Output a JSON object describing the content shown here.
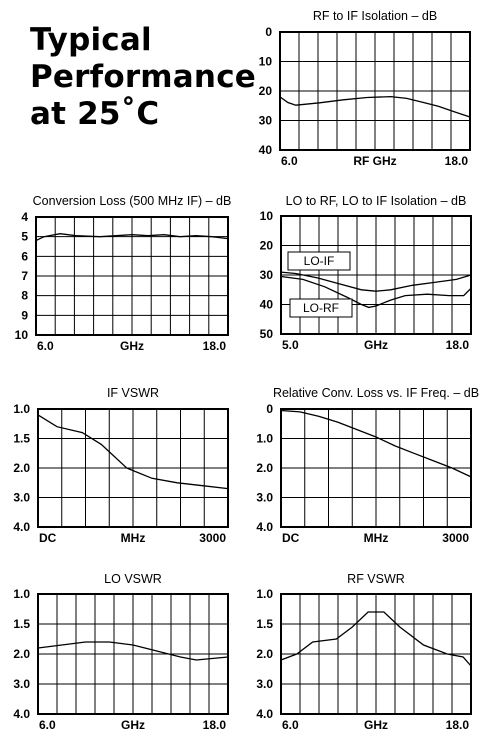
{
  "heading": {
    "line1": "Typical",
    "line2": "Performance",
    "line3": "at 25˚C"
  },
  "chart_data": [
    {
      "id": "rf-if",
      "type": "line",
      "title": "RF to IF Isolation – dB",
      "xlabel": "RF GHz",
      "x_ticks": [
        "6.0",
        "",
        "18.0"
      ],
      "y_ticks": [
        "0",
        "10",
        "20",
        "30",
        "40"
      ],
      "xlim": [
        6.0,
        18.0
      ],
      "ylim": [
        0,
        40
      ],
      "y_inverted": true,
      "grid": true,
      "series": [
        {
          "values": [
            [
              6.0,
              22.0
            ],
            [
              6.5,
              23.9
            ],
            [
              7.0,
              24.8
            ],
            [
              8.5,
              24.0
            ],
            [
              10.0,
              23.0
            ],
            [
              11.5,
              22.2
            ],
            [
              13.0,
              21.9
            ],
            [
              14.0,
              22.5
            ],
            [
              15.0,
              23.8
            ],
            [
              16.0,
              25.2
            ],
            [
              17.0,
              27.0
            ],
            [
              18.0,
              28.8
            ]
          ]
        }
      ]
    },
    {
      "id": "conv-loss",
      "type": "line",
      "title": "Conversion Loss (500 MHz IF) – dB",
      "xlabel": "GHz",
      "x_ticks": [
        "6.0",
        "",
        "18.0"
      ],
      "y_ticks": [
        "4",
        "5",
        "6",
        "7",
        "8",
        "9",
        "10"
      ],
      "xlim": [
        6.0,
        18.0
      ],
      "ylim": [
        4,
        10
      ],
      "y_inverted": true,
      "grid": true,
      "series": [
        {
          "values": [
            [
              6.0,
              5.2
            ],
            [
              6.5,
              5.0
            ],
            [
              7.5,
              4.85
            ],
            [
              8.5,
              4.95
            ],
            [
              10.0,
              5.0
            ],
            [
              11.0,
              4.95
            ],
            [
              12.0,
              4.9
            ],
            [
              13.0,
              4.95
            ],
            [
              14.0,
              4.9
            ],
            [
              15.0,
              5.0
            ],
            [
              16.0,
              4.95
            ],
            [
              17.0,
              5.0
            ],
            [
              18.0,
              5.1
            ]
          ]
        }
      ]
    },
    {
      "id": "lo-iso",
      "type": "line",
      "title": "LO to RF, LO to IF Isolation – dB",
      "xlabel": "GHz",
      "x_ticks": [
        "5.0",
        "",
        "18.0"
      ],
      "y_ticks": [
        "10",
        "20",
        "30",
        "40",
        "50"
      ],
      "xlim": [
        5.0,
        18.0
      ],
      "ylim": [
        10,
        50
      ],
      "y_inverted": true,
      "grid": true,
      "legend": [
        "LO-IF",
        "LO-RF"
      ],
      "series": [
        {
          "name": "LO-IF",
          "values": [
            [
              5.0,
              29.0
            ],
            [
              6.0,
              29.5
            ],
            [
              7.5,
              31.0
            ],
            [
              9.0,
              33.0
            ],
            [
              10.5,
              35.0
            ],
            [
              11.5,
              35.5
            ],
            [
              12.5,
              35.0
            ],
            [
              14.0,
              33.5
            ],
            [
              15.5,
              32.5
            ],
            [
              17.0,
              31.5
            ],
            [
              18.0,
              30.0
            ]
          ]
        },
        {
          "name": "LO-RF",
          "values": [
            [
              5.0,
              30.5
            ],
            [
              6.5,
              31.5
            ],
            [
              8.0,
              34.0
            ],
            [
              9.5,
              37.5
            ],
            [
              10.5,
              40.0
            ],
            [
              11.0,
              41.0
            ],
            [
              11.5,
              40.5
            ],
            [
              12.5,
              38.5
            ],
            [
              13.5,
              37.0
            ],
            [
              15.0,
              36.5
            ],
            [
              16.5,
              37.0
            ],
            [
              17.5,
              37.0
            ],
            [
              18.0,
              34.5
            ]
          ]
        }
      ]
    },
    {
      "id": "if-vswr",
      "type": "line",
      "title": "IF VSWR",
      "xlabel": "MHz",
      "x_ticks": [
        "DC",
        "",
        "3000"
      ],
      "y_ticks": [
        "1.0",
        "1.5",
        "2.0",
        "3.0",
        "4.0"
      ],
      "xlim": [
        0,
        3000
      ],
      "ylim": [
        0,
        4
      ],
      "grid": true,
      "series": [
        {
          "values": [
            [
              0,
              1.1
            ],
            [
              300,
              1.3
            ],
            [
              700,
              1.4
            ],
            [
              1000,
              1.6
            ],
            [
              1400,
              2.0
            ],
            [
              1800,
              2.35
            ],
            [
              2200,
              2.5
            ],
            [
              2600,
              2.6
            ],
            [
              3000,
              2.7
            ]
          ]
        }
      ]
    },
    {
      "id": "rel-conv",
      "type": "line",
      "title": "Relative Conv. Loss vs. IF Freq. – dB",
      "xlabel": "MHz",
      "x_ticks": [
        "DC",
        "",
        "3000"
      ],
      "y_ticks": [
        "0",
        "1.0",
        "2.0",
        "3.0",
        "4.0"
      ],
      "xlim": [
        0,
        3000
      ],
      "ylim": [
        0,
        4
      ],
      "y_inverted": true,
      "grid": true,
      "series": [
        {
          "values": [
            [
              0,
              0.05
            ],
            [
              300,
              0.1
            ],
            [
              600,
              0.25
            ],
            [
              900,
              0.45
            ],
            [
              1200,
              0.7
            ],
            [
              1500,
              0.95
            ],
            [
              1800,
              1.25
            ],
            [
              2100,
              1.5
            ],
            [
              2400,
              1.75
            ],
            [
              2700,
              2.0
            ],
            [
              3000,
              2.3
            ]
          ]
        }
      ]
    },
    {
      "id": "lo-vswr",
      "type": "line",
      "title": "LO VSWR",
      "xlabel": "GHz",
      "x_ticks": [
        "6.0",
        "",
        "18.0"
      ],
      "y_ticks": [
        "1.0",
        "1.5",
        "2.0",
        "3.0",
        "4.0"
      ],
      "xlim": [
        6.0,
        18.0
      ],
      "ylim": [
        0,
        4
      ],
      "grid": true,
      "series": [
        {
          "values": [
            [
              6.0,
              1.9
            ],
            [
              7.5,
              1.85
            ],
            [
              9.0,
              1.8
            ],
            [
              10.5,
              1.8
            ],
            [
              12.0,
              1.85
            ],
            [
              13.5,
              1.95
            ],
            [
              15.0,
              2.1
            ],
            [
              16.0,
              2.2
            ],
            [
              17.0,
              2.15
            ],
            [
              18.0,
              2.1
            ]
          ]
        }
      ]
    },
    {
      "id": "rf-vswr",
      "type": "line",
      "title": "RF VSWR",
      "xlabel": "GHz",
      "x_ticks": [
        "6.0",
        "",
        "18.0"
      ],
      "y_ticks": [
        "1.0",
        "1.5",
        "2.0",
        "3.0",
        "4.0"
      ],
      "xlim": [
        6.0,
        18.0
      ],
      "ylim": [
        0,
        4
      ],
      "grid": true,
      "series": [
        {
          "values": [
            [
              6.0,
              2.2
            ],
            [
              7.0,
              2.0
            ],
            [
              8.0,
              1.8
            ],
            [
              9.5,
              1.75
            ],
            [
              10.5,
              1.55
            ],
            [
              11.5,
              1.3
            ],
            [
              12.5,
              1.3
            ],
            [
              13.5,
              1.55
            ],
            [
              15.0,
              1.85
            ],
            [
              16.5,
              2.0
            ],
            [
              17.5,
              2.1
            ],
            [
              18.0,
              2.4
            ]
          ]
        }
      ]
    }
  ]
}
